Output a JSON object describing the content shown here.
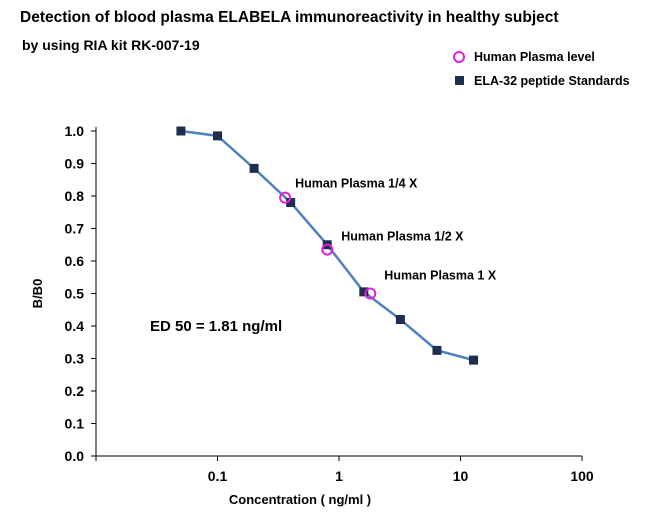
{
  "chart_data": {
    "type": "line",
    "title": "Detection of blood plasma  ELABELA  immunoreactivity  in healthy subject",
    "subtitle": "by using RIA kit  RK-007-19",
    "xlabel": "Concentration ( ng/ml )",
    "ylabel": "B/B0",
    "x_scale": "log",
    "xlim": [
      0.01,
      100
    ],
    "ylim": [
      0.0,
      1.0
    ],
    "x_ticks": [
      "0.1",
      "1",
      "10",
      "100"
    ],
    "y_ticks": [
      "0.0",
      "0.1",
      "0.2",
      "0.3",
      "0.4",
      "0.5",
      "0.6",
      "0.7",
      "0.8",
      "0.9",
      "1.0"
    ],
    "grid": false,
    "legend_position": "top-right",
    "series": [
      {
        "name": "ELA-32  peptide Standards",
        "marker": "filled-square",
        "color": "#1f2d4f",
        "line_color": "#4f81bd",
        "x": [
          0.05,
          0.1,
          0.2,
          0.4,
          0.8,
          1.6,
          3.2,
          6.4,
          12.8
        ],
        "y": [
          1.0,
          0.985,
          0.885,
          0.78,
          0.65,
          0.505,
          0.42,
          0.325,
          0.295
        ]
      },
      {
        "name": "Human Plasma level",
        "marker": "open-circle",
        "color": "#e020e0",
        "x": [
          0.36,
          0.8,
          1.81
        ],
        "y": [
          0.795,
          0.635,
          0.5
        ]
      }
    ],
    "annotations": [
      {
        "text": "Human Plasma 1/4 X"
      },
      {
        "text": "Human Plasma 1/2 X"
      },
      {
        "text": "Human Plasma 1 X"
      },
      {
        "text": "ED 50 =  1.81 ng/ml"
      }
    ]
  }
}
